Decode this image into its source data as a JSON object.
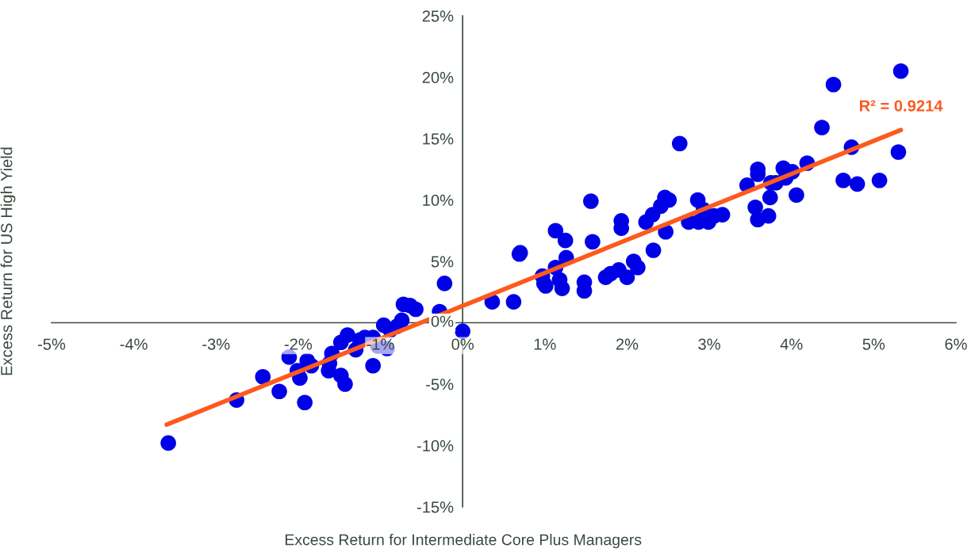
{
  "chart_data": {
    "type": "scatter",
    "xlabel": "Excess Return for Intermediate Core Plus Managers",
    "ylabel": "Excess Return for US High Yield",
    "xlim": [
      -5,
      6
    ],
    "ylim": [
      -15,
      25
    ],
    "xticks": [
      {
        "value": -5,
        "label": "-5%"
      },
      {
        "value": -4,
        "label": "-4%"
      },
      {
        "value": -3,
        "label": "-3%"
      },
      {
        "value": -2,
        "label": "-2%"
      },
      {
        "value": -1,
        "label": "-1%"
      },
      {
        "value": 0,
        "label": "0%"
      },
      {
        "value": 1,
        "label": "1%"
      },
      {
        "value": 2,
        "label": "2%"
      },
      {
        "value": 3,
        "label": "3%"
      },
      {
        "value": 4,
        "label": "4%"
      },
      {
        "value": 5,
        "label": "5%"
      },
      {
        "value": 6,
        "label": "6%"
      }
    ],
    "yticks": [
      {
        "value": -15,
        "label": "-15%"
      },
      {
        "value": -10,
        "label": "-10%"
      },
      {
        "value": -5,
        "label": "-5%"
      },
      {
        "value": 0,
        "label": "0%"
      },
      {
        "value": 5,
        "label": "5%"
      },
      {
        "value": 10,
        "label": "10%"
      },
      {
        "value": 15,
        "label": "15%"
      },
      {
        "value": 20,
        "label": "20%"
      },
      {
        "value": 25,
        "label": "25%"
      }
    ],
    "grid": false,
    "legend": false,
    "series": [
      {
        "marker": "circle",
        "color": "#0000e6",
        "x": [
          -3.58,
          -2.75,
          -2.43,
          -2.23,
          -2.11,
          -1.92,
          -2.01,
          -1.98,
          -1.89,
          -1.84,
          -1.63,
          -1.59,
          -1.62,
          -1.48,
          -1.48,
          -1.43,
          -1.4,
          -1.3,
          -1.25,
          -1.19,
          -1.09,
          -1.09,
          -1.03,
          -0.96,
          -0.92,
          -0.88,
          -0.8,
          -0.74,
          -0.72,
          -0.64,
          -0.57,
          -0.28,
          -0.22,
          0.0,
          0.36,
          0.62,
          0.69,
          0.7,
          0.97,
          0.99,
          1.01,
          1.13,
          1.13,
          1.18,
          1.21,
          1.25,
          1.26,
          1.48,
          1.48,
          1.56,
          1.58,
          1.74,
          1.8,
          1.9,
          1.93,
          1.93,
          2.0,
          2.08,
          2.13,
          2.23,
          2.31,
          2.32,
          2.41,
          2.46,
          2.47,
          2.51,
          2.64,
          2.75,
          2.86,
          2.87,
          2.93,
          2.99,
          3.06,
          3.16,
          3.46,
          3.56,
          3.59,
          3.59,
          3.59,
          3.72,
          3.74,
          3.75,
          3.81,
          3.9,
          3.93,
          4.01,
          4.06,
          4.19,
          4.37,
          4.51,
          4.63,
          4.73,
          4.8,
          5.07,
          5.3,
          5.33
        ],
        "values": [
          -9.8,
          -6.3,
          -4.4,
          -5.6,
          -2.8,
          -6.5,
          -3.9,
          -4.5,
          -3.1,
          -3.5,
          -3.9,
          -2.5,
          -3.3,
          -1.6,
          -4.3,
          -5.0,
          -1.0,
          -2.2,
          -1.4,
          -1.2,
          -1.2,
          -3.5,
          -1.9,
          -0.2,
          -2.1,
          -0.6,
          -0.3,
          0.2,
          1.5,
          1.4,
          1.1,
          0.9,
          3.2,
          -0.7,
          1.7,
          1.7,
          5.6,
          5.7,
          3.8,
          3.2,
          3.0,
          7.5,
          4.5,
          3.5,
          2.8,
          6.7,
          5.3,
          3.3,
          2.6,
          9.9,
          6.6,
          3.7,
          4.0,
          4.3,
          8.3,
          7.7,
          3.7,
          5.0,
          4.5,
          8.2,
          8.8,
          5.9,
          9.5,
          10.2,
          7.4,
          10.0,
          14.6,
          8.2,
          10.0,
          8.2,
          9.2,
          8.2,
          8.7,
          8.8,
          11.2,
          9.4,
          8.4,
          12.1,
          12.5,
          8.7,
          10.2,
          11.4,
          11.4,
          12.6,
          11.8,
          12.3,
          10.4,
          13.0,
          15.9,
          19.4,
          11.6,
          14.3,
          11.3,
          11.6,
          13.9,
          20.5
        ]
      },
      {
        "type": "line",
        "marker": "none",
        "color": "#fc5a1e",
        "x": [
          -3.6,
          5.33
        ],
        "values": [
          -8.3,
          15.7
        ]
      }
    ],
    "annotations": [
      {
        "text": "R² = 0.9214",
        "x": 5.33,
        "y": 15.7
      }
    ]
  }
}
